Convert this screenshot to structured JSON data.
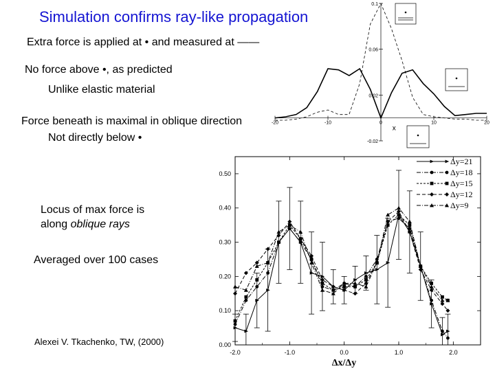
{
  "slide": {
    "title": "Simulation confirms ray-like propagation",
    "lines": [
      "Extra force is applied at • and measured at ——",
      "No force above •, as predicted",
      "Unlike elastic material",
      "Force beneath is maximal in oblique direction",
      "Not directly below •",
      "Locus of max force is",
      "along ",
      "oblique rays",
      "Averaged over 100 cases",
      "Alexei V. Tkachenko, TW, (2000)"
    ]
  },
  "chart_data": [
    {
      "type": "line",
      "xlim": [
        -20,
        20
      ],
      "ylim": [
        -0.02,
        0.1
      ],
      "xlabel": "x",
      "ylabel": "",
      "x_ticks": [
        "-20",
        "-10",
        "0",
        "10",
        "20"
      ],
      "y_ticks": [
        "-0.02",
        "0.02",
        "0.06",
        "0.1"
      ],
      "grid": false,
      "series": [
        {
          "style": "solid",
          "x": [
            -20,
            -18,
            -16,
            -14,
            -12,
            -10,
            -8,
            -6,
            -4,
            -2,
            0,
            2,
            4,
            6,
            8,
            10,
            12,
            14,
            16,
            18,
            20
          ],
          "y": [
            0.0,
            0.001,
            0.003,
            0.009,
            0.023,
            0.043,
            0.042,
            0.037,
            0.043,
            0.025,
            0.0,
            0.022,
            0.039,
            0.042,
            0.03,
            0.021,
            0.01,
            0.002,
            0.003,
            0.004,
            0.004
          ]
        },
        {
          "style": "dashed",
          "x": [
            -20,
            -18,
            -16,
            -14,
            -12,
            -10,
            -8,
            -6,
            -4,
            -2,
            0,
            2,
            4,
            6,
            8,
            10,
            12,
            14,
            16,
            18,
            20
          ],
          "y": [
            -0.002,
            -0.002,
            -0.001,
            0.001,
            0.005,
            0.007,
            0.003,
            0.003,
            0.03,
            0.082,
            0.1,
            0.078,
            0.05,
            0.018,
            0.003,
            0.001,
            0.0,
            -0.001,
            -0.001,
            -0.002,
            -0.002
          ]
        }
      ],
      "insets": [
        "point-and-line-inset",
        "point-inset",
        "point-inset"
      ]
    },
    {
      "type": "line",
      "xlim": [
        -2.0,
        2.5
      ],
      "ylim": [
        0.0,
        0.55
      ],
      "xlabel": "Δx/Δy",
      "ylabel": "",
      "x_ticks": [
        "-2.0",
        "-1.0",
        "0.0",
        "1.0",
        "2.0"
      ],
      "y_ticks": [
        "0.00",
        "0.10",
        "0.20",
        "0.30",
        "0.40",
        "0.50"
      ],
      "grid": false,
      "legend_position": "top-right",
      "x": [
        -2.0,
        -1.8,
        -1.6,
        -1.4,
        -1.2,
        -1.0,
        -0.8,
        -0.6,
        -0.4,
        -0.2,
        0.0,
        0.2,
        0.4,
        0.6,
        0.8,
        1.0,
        1.2,
        1.4,
        1.6,
        1.8,
        1.9
      ],
      "series": [
        {
          "name": "Δy=21",
          "dash": "",
          "marker": "triangle-right",
          "values": [
            0.05,
            0.04,
            0.13,
            0.16,
            0.3,
            0.34,
            0.3,
            0.21,
            0.2,
            0.17,
            0.16,
            0.19,
            0.21,
            0.22,
            0.24,
            0.38,
            0.33,
            0.23,
            0.12,
            0.03,
            0.04
          ],
          "errors": [
            0.04,
            0.05,
            0.08,
            0.12,
            0.12,
            0.12,
            0.12,
            0.12,
            0.1,
            0.05,
            0.04,
            0.04,
            0.05,
            0.1,
            0.13,
            0.13,
            0.12,
            0.1,
            0.07,
            0.05,
            0.05
          ]
        },
        {
          "name": "Δy=18",
          "dash": "6 2 1 2",
          "marker": "circle",
          "values": [
            0.06,
            0.13,
            0.17,
            0.21,
            0.3,
            0.34,
            0.3,
            0.25,
            0.17,
            0.16,
            0.18,
            0.17,
            0.2,
            0.25,
            0.36,
            0.37,
            0.34,
            0.23,
            0.13,
            0.04,
            0.02
          ],
          "errors": null
        },
        {
          "name": "Δy=15",
          "dash": "3 2",
          "marker": "square",
          "values": [
            0.07,
            0.14,
            0.19,
            0.24,
            0.3,
            0.35,
            0.31,
            0.25,
            0.18,
            0.16,
            0.17,
            0.17,
            0.19,
            0.24,
            0.35,
            0.38,
            0.35,
            0.23,
            0.18,
            0.14,
            0.13
          ],
          "errors": null
        },
        {
          "name": "Δy=12",
          "dash": "5 3",
          "marker": "diamond",
          "values": [
            0.15,
            0.21,
            0.24,
            0.28,
            0.32,
            0.36,
            0.31,
            0.26,
            0.19,
            0.17,
            0.16,
            0.15,
            0.18,
            0.24,
            0.36,
            0.39,
            0.33,
            0.22,
            0.16,
            0.12,
            0.1
          ],
          "errors": null
        },
        {
          "name": "Δy=9",
          "dash": "6 2 1 2",
          "marker": "triangle-up",
          "values": [
            0.17,
            0.16,
            0.23,
            0.24,
            0.33,
            0.35,
            0.33,
            0.24,
            0.16,
            0.15,
            0.18,
            0.18,
            0.17,
            0.24,
            0.38,
            0.4,
            0.36,
            0.23,
            0.17,
            0.13,
            0.13
          ],
          "errors": null
        }
      ]
    }
  ],
  "colors": {
    "title": "#1414d2",
    "ink": "#000000",
    "background": "#ffffff"
  }
}
